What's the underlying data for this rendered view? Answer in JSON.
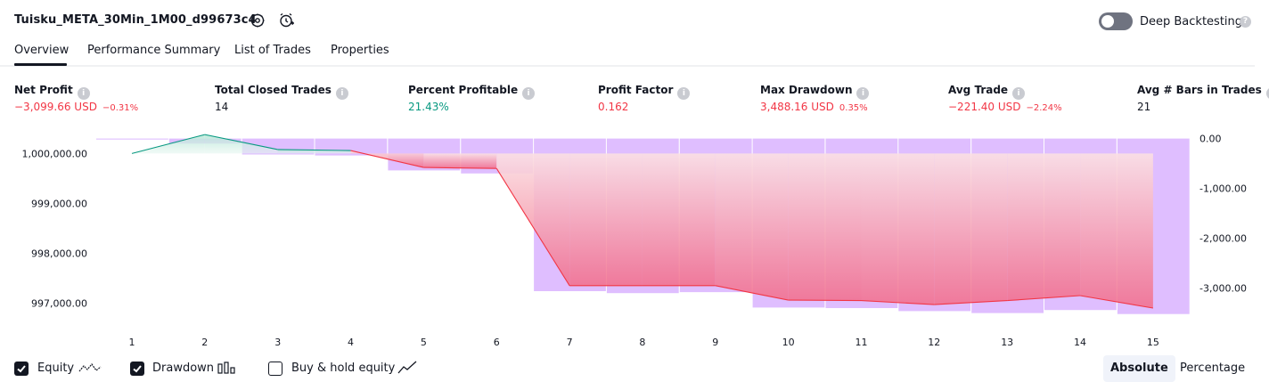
{
  "header": {
    "title": "Tuisku_META_30Min_1M00_d99673c4",
    "settings_icon": "settings-gear-icon",
    "alert_icon": "add-alert-clock-icon",
    "deep_backtesting_label": "Deep Backtesting",
    "deep_backtesting_enabled": false,
    "help_icon": "?"
  },
  "tabs": [
    {
      "label": "Overview",
      "active": true
    },
    {
      "label": "Performance Summary",
      "active": false
    },
    {
      "label": "List of Trades",
      "active": false
    },
    {
      "label": "Properties",
      "active": false
    }
  ],
  "metrics": [
    {
      "label": "Net Profit",
      "value": "−3,099.66 USD",
      "pct": "−0.31%",
      "color": "red"
    },
    {
      "label": "Total Closed Trades",
      "value": "14",
      "pct": "",
      "color": "black"
    },
    {
      "label": "Percent Profitable",
      "value": "21.43%",
      "pct": "",
      "color": "green"
    },
    {
      "label": "Profit Factor",
      "value": "0.162",
      "pct": "",
      "color": "red"
    },
    {
      "label": "Max Drawdown",
      "value": "3,488.16 USD",
      "pct": "0.35%",
      "color": "red"
    },
    {
      "label": "Avg Trade",
      "value": "−221.40 USD",
      "pct": "−2.24%",
      "color": "red"
    },
    {
      "label": "Avg # Bars in Trades",
      "value": "21",
      "pct": "",
      "color": "black"
    }
  ],
  "info_icon": "i",
  "colors": {
    "loss": "#f23645",
    "profit": "#089981",
    "drawdown_bar": "#d9b3ff",
    "text": "#131722"
  },
  "chart_data": {
    "type": "line",
    "x": [
      1,
      2,
      3,
      4,
      5,
      6,
      7,
      8,
      9,
      10,
      11,
      12,
      13,
      14,
      15
    ],
    "left_axis": {
      "label": "",
      "ticks": [
        "1,000,000.00",
        "999,000.00",
        "998,000.00",
        "997,000.00"
      ],
      "tick_values": [
        1000000,
        999000,
        998000,
        997000
      ],
      "range": [
        996650,
        1000400
      ]
    },
    "right_axis": {
      "label": "",
      "ticks": [
        "0.00",
        "-1,000.00",
        "-2,000.00",
        "-3,000.00"
      ],
      "tick_values": [
        0,
        -1000,
        -2000,
        -3000
      ],
      "range": [
        -3650,
        100
      ]
    },
    "series": [
      {
        "name": "Equity",
        "axis": "left",
        "values": [
          1000000,
          1000380,
          1000080,
          1000060,
          999720,
          999700,
          997350,
          997350,
          997350,
          997060,
          997050,
          996970,
          997050,
          997150,
          996900
        ]
      },
      {
        "name": "Drawdown",
        "axis": "right",
        "bar": true,
        "values": [
          -20,
          -100,
          -320,
          -340,
          -640,
          -700,
          -3060,
          -3100,
          -3080,
          -3390,
          -3400,
          -3460,
          -3500,
          -3440,
          -3520
        ]
      }
    ],
    "x_tick_labels": [
      "1",
      "2",
      "3",
      "4",
      "5",
      "6",
      "7",
      "8",
      "9",
      "10",
      "11",
      "12",
      "13",
      "14",
      "15"
    ],
    "grid": false
  },
  "legend": {
    "items": [
      {
        "label": "Equity",
        "checked": true,
        "icon": "equity-line-icon"
      },
      {
        "label": "Drawdown",
        "checked": true,
        "icon": "drawdown-bars-icon"
      },
      {
        "label": "Buy & hold equity",
        "checked": false,
        "icon": "buy-hold-line-icon"
      }
    ],
    "check_glyph": "✓"
  },
  "view_buttons": [
    {
      "label": "Absolute",
      "selected": true
    },
    {
      "label": "Percentage",
      "selected": false
    }
  ]
}
